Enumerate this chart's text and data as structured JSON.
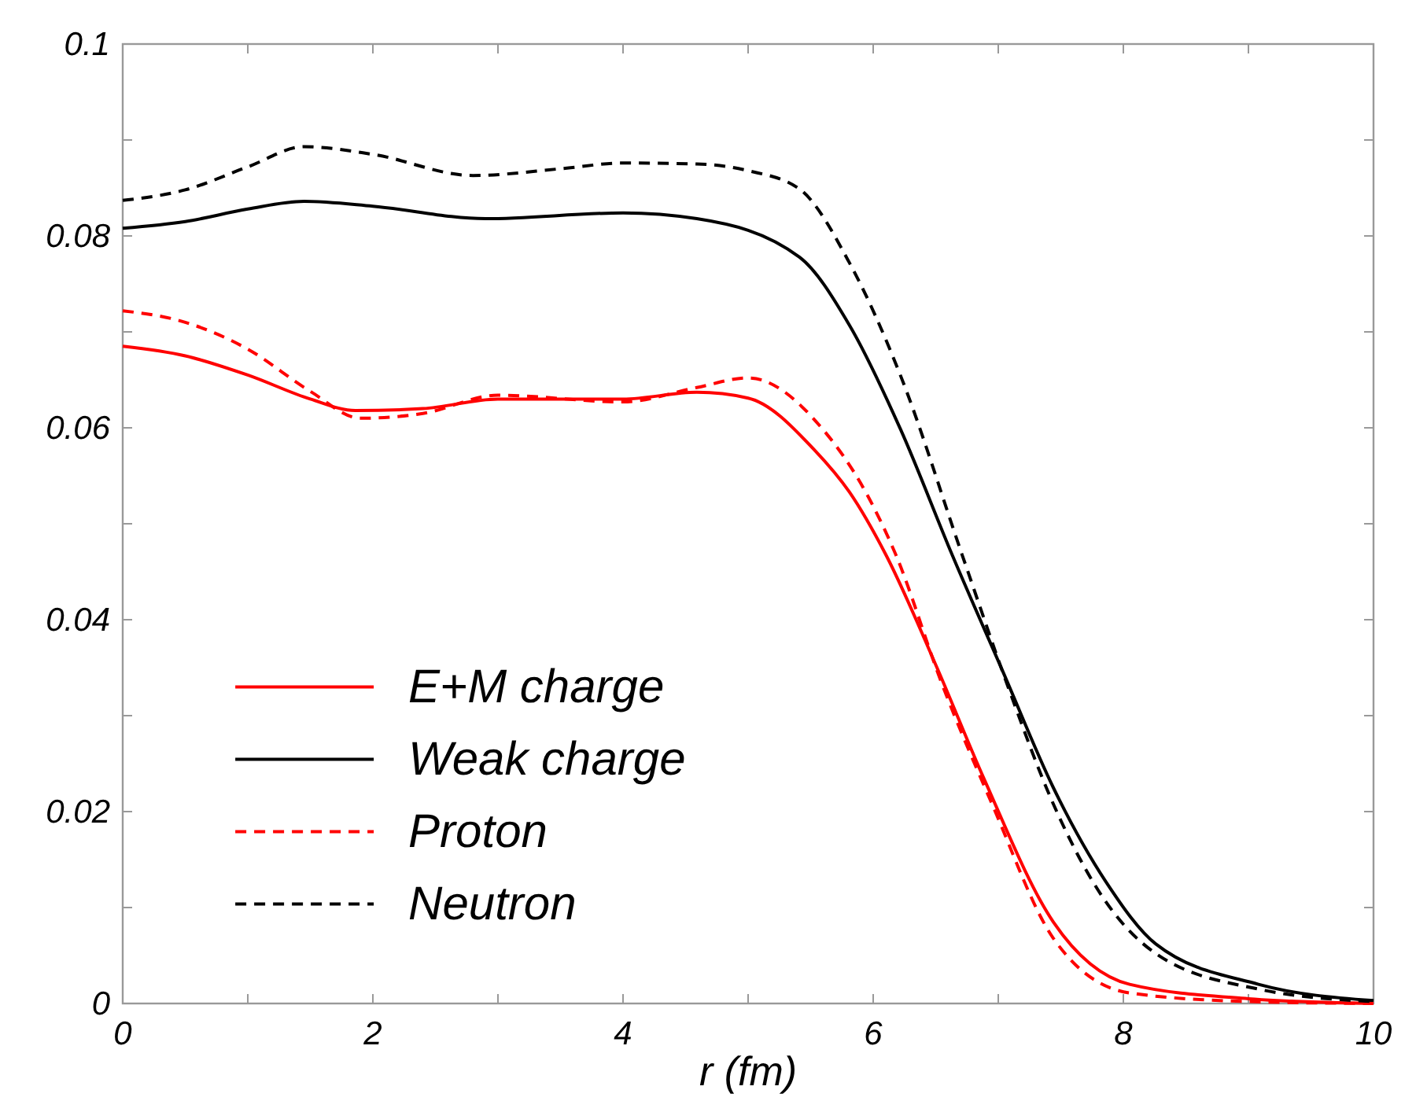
{
  "chart_data": {
    "type": "line",
    "xlabel": "r (fm)",
    "xlim": [
      0,
      10
    ],
    "ylim": [
      0,
      0.1
    ],
    "xticks": [
      0,
      {
        "value": 1,
        "label": null
      },
      2,
      {
        "value": 3,
        "label": null
      },
      4,
      {
        "value": 5,
        "label": null
      },
      6,
      {
        "value": 7,
        "label": null
      },
      8,
      {
        "value": 9,
        "label": null
      },
      10
    ],
    "yticks": [
      0,
      {
        "value": 0.01,
        "label": null
      },
      0.02,
      {
        "value": 0.03,
        "label": null
      },
      0.04,
      {
        "value": 0.05,
        "label": null
      },
      0.06,
      {
        "value": 0.07,
        "label": null
      },
      0.08,
      {
        "value": 0.09,
        "label": null
      },
      0.1
    ],
    "grid": false,
    "legend": "bottom left",
    "series": [
      {
        "name": "E+M charge",
        "color": "#ff0000",
        "line_style": "solid",
        "x": [
          0,
          0.5,
          1,
          1.5,
          1.86,
          2.4,
          3,
          4,
          4.59,
          5.0,
          5.53,
          5.81,
          6.1,
          6.51,
          6.88,
          7.44,
          8.05,
          9,
          10
        ],
        "values": [
          0.0685,
          0.0675,
          0.0655,
          0.063,
          0.0618,
          0.062,
          0.063,
          0.063,
          0.0637,
          0.0631,
          0.0577,
          0.0533,
          0.0468,
          0.035,
          0.0236,
          0.0085,
          0.002,
          0.0005,
          0
        ]
      },
      {
        "name": "Weak charge",
        "color": "#000000",
        "line_style": "solid",
        "x": [
          0,
          0.5,
          1,
          1.45,
          2,
          2.9,
          4,
          4.59,
          5.41,
          5.81,
          6.22,
          6.63,
          7.04,
          7.44,
          7.86,
          8.26,
          9.08,
          10
        ],
        "values": [
          0.0808,
          0.0815,
          0.0828,
          0.0836,
          0.0831,
          0.0818,
          0.0824,
          0.0818,
          0.0778,
          0.0707,
          0.0598,
          0.0468,
          0.0345,
          0.0225,
          0.0127,
          0.0062,
          0.002,
          0.0003
        ]
      },
      {
        "name": "Proton",
        "color": "#ff0000",
        "line_style": "dashed",
        "x": [
          0,
          0.5,
          1,
          1.5,
          1.9,
          2.4,
          3,
          4,
          4.59,
          5.0,
          5.6,
          5.94,
          6.18,
          6.55,
          6.95,
          7.44,
          8.05,
          9,
          10
        ],
        "values": [
          0.0722,
          0.071,
          0.0682,
          0.0638,
          0.061,
          0.0615,
          0.0634,
          0.0627,
          0.0642,
          0.0652,
          0.0598,
          0.0533,
          0.0468,
          0.0333,
          0.0208,
          0.0068,
          0.0011,
          0.0002,
          0
        ]
      },
      {
        "name": "Neutron",
        "color": "#000000",
        "line_style": "dashed",
        "x": [
          0,
          0.5,
          1,
          1.45,
          2,
          2.8,
          3.5,
          4,
          4.59,
          5.0,
          5.41,
          5.81,
          6.22,
          6.71,
          7.07,
          7.44,
          7.86,
          8.26,
          9.08,
          10
        ],
        "values": [
          0.0837,
          0.0848,
          0.0872,
          0.0893,
          0.0885,
          0.0863,
          0.087,
          0.0876,
          0.0875,
          0.0868,
          0.0849,
          0.0772,
          0.0654,
          0.0468,
          0.0333,
          0.0208,
          0.0106,
          0.0052,
          0.0015,
          0.0002
        ]
      }
    ]
  }
}
